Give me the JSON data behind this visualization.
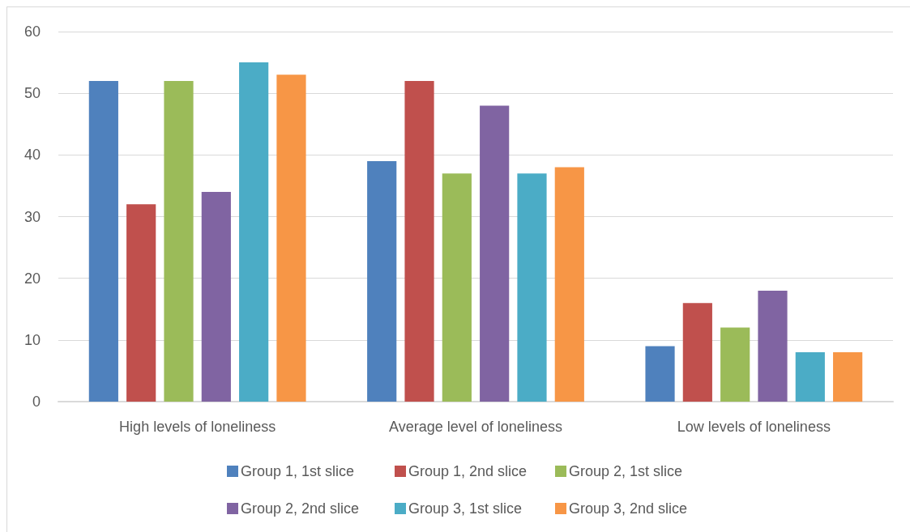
{
  "chart_data": {
    "type": "bar",
    "categories": [
      "High levels of loneliness",
      "Average level of loneliness",
      "Low levels of loneliness"
    ],
    "series": [
      {
        "name": "Group 1, 1st slice",
        "color": "#4f81bd",
        "values": [
          52,
          39,
          9
        ]
      },
      {
        "name": "Group 1, 2nd slice",
        "color": "#c0504d",
        "values": [
          32,
          52,
          16
        ]
      },
      {
        "name": "Group 2, 1st slice",
        "color": "#9bbb59",
        "values": [
          52,
          37,
          12
        ]
      },
      {
        "name": "Group 2, 2nd slice",
        "color": "#8064a2",
        "values": [
          34,
          48,
          18
        ]
      },
      {
        "name": "Group 3, 1st slice",
        "color": "#4bacc6",
        "values": [
          55,
          37,
          8
        ]
      },
      {
        "name": "Group 3, 2nd slice",
        "color": "#f79646",
        "values": [
          53,
          38,
          8
        ]
      }
    ],
    "ylim": [
      0,
      60
    ],
    "yticks": [
      0,
      10,
      20,
      30,
      40,
      50,
      60
    ],
    "grid": "y",
    "legend": "bottom"
  }
}
